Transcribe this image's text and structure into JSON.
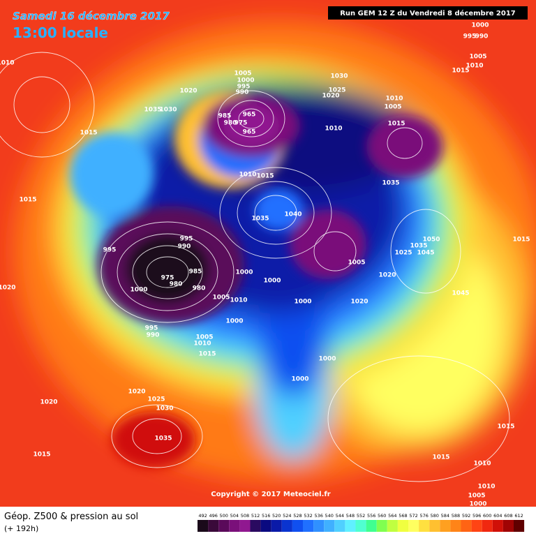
{
  "header": {
    "date": "Samedi 16 décembre 2017",
    "time": "13:00 locale",
    "run": "Run GEM 12 Z du Vendredi 8 décembre 2017"
  },
  "copyright": "Copyright © 2017 Meteociel.fr",
  "footer": {
    "title": "Géop. Z500 & pression au sol",
    "lead": "(+ 192h)"
  },
  "isobar_labels": [
    1010,
    1020,
    1035,
    1030,
    1015,
    1015,
    1020,
    1005,
    1000,
    995,
    990,
    985,
    980,
    975,
    965,
    965,
    1030,
    1025,
    1020,
    1010,
    1005,
    1015,
    1010,
    1010,
    1015,
    1035,
    1035,
    1040,
    995,
    995,
    990,
    985,
    975,
    980,
    980,
    1000,
    1000,
    1000,
    1005,
    1010,
    1000,
    1000,
    1020,
    1020,
    1005,
    1050,
    1035,
    1025,
    1045,
    1045,
    1015,
    995,
    990,
    1005,
    1010,
    1015,
    1000,
    1000,
    1020,
    1025,
    1030,
    1020,
    1035,
    1015,
    1000,
    995,
    990,
    1005,
    1010,
    1015,
    1015,
    1010,
    1015,
    1010,
    1005,
    1000
  ],
  "scale": {
    "values": [
      492,
      496,
      500,
      504,
      508,
      512,
      516,
      520,
      524,
      528,
      532,
      536,
      540,
      544,
      548,
      552,
      556,
      560,
      564,
      568,
      572,
      576,
      580,
      584,
      588,
      592,
      596,
      600,
      604,
      608,
      612
    ],
    "colors": [
      "#1a0a1a",
      "#3a0a3a",
      "#5a0a5a",
      "#7a107a",
      "#901890",
      "#2a0a60",
      "#0a0a80",
      "#0a1aa8",
      "#0a34d0",
      "#1050f0",
      "#2070ff",
      "#3090ff",
      "#40b0ff",
      "#50d0ff",
      "#60f0ff",
      "#50ffd0",
      "#40ff90",
      "#80ff50",
      "#c0ff40",
      "#f0ff40",
      "#ffff60",
      "#ffe040",
      "#ffc030",
      "#ffa020",
      "#ff8418",
      "#ff6414",
      "#ff4414",
      "#f02810",
      "#d01008",
      "#a00404",
      "#600000"
    ]
  }
}
